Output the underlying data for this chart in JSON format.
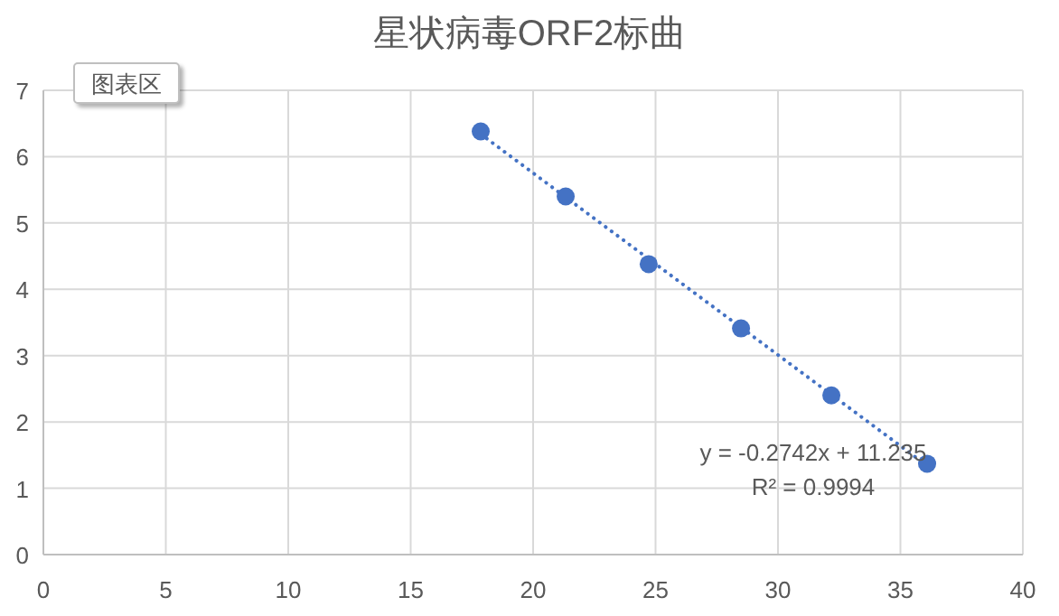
{
  "chart_data": {
    "type": "scatter",
    "title": "星状病毒ORF2标曲",
    "xlim": [
      0,
      40
    ],
    "xticks": [
      0,
      5,
      10,
      15,
      20,
      25,
      30,
      35,
      40
    ],
    "ylim": [
      0,
      7
    ],
    "yticks": [
      0,
      1,
      2,
      3,
      4,
      5,
      6,
      7
    ],
    "grid": true,
    "series": [
      {
        "color": "#4472c4",
        "marker": "circle",
        "x": [
          17.86,
          21.33,
          24.72,
          28.49,
          32.18,
          36.09
        ],
        "values": [
          6.38,
          5.4,
          4.38,
          3.41,
          2.4,
          1.37
        ]
      },
      {
        "type": "line",
        "color": "#4472c4",
        "marker": "none",
        "line_style": "dotted",
        "x": [
          17.86,
          36.09
        ],
        "values": [
          6.34,
          1.34
        ]
      }
    ],
    "annotations": [
      "y = -0.2742x + 11.235",
      "R² = 0.9994",
      "图表区"
    ]
  }
}
